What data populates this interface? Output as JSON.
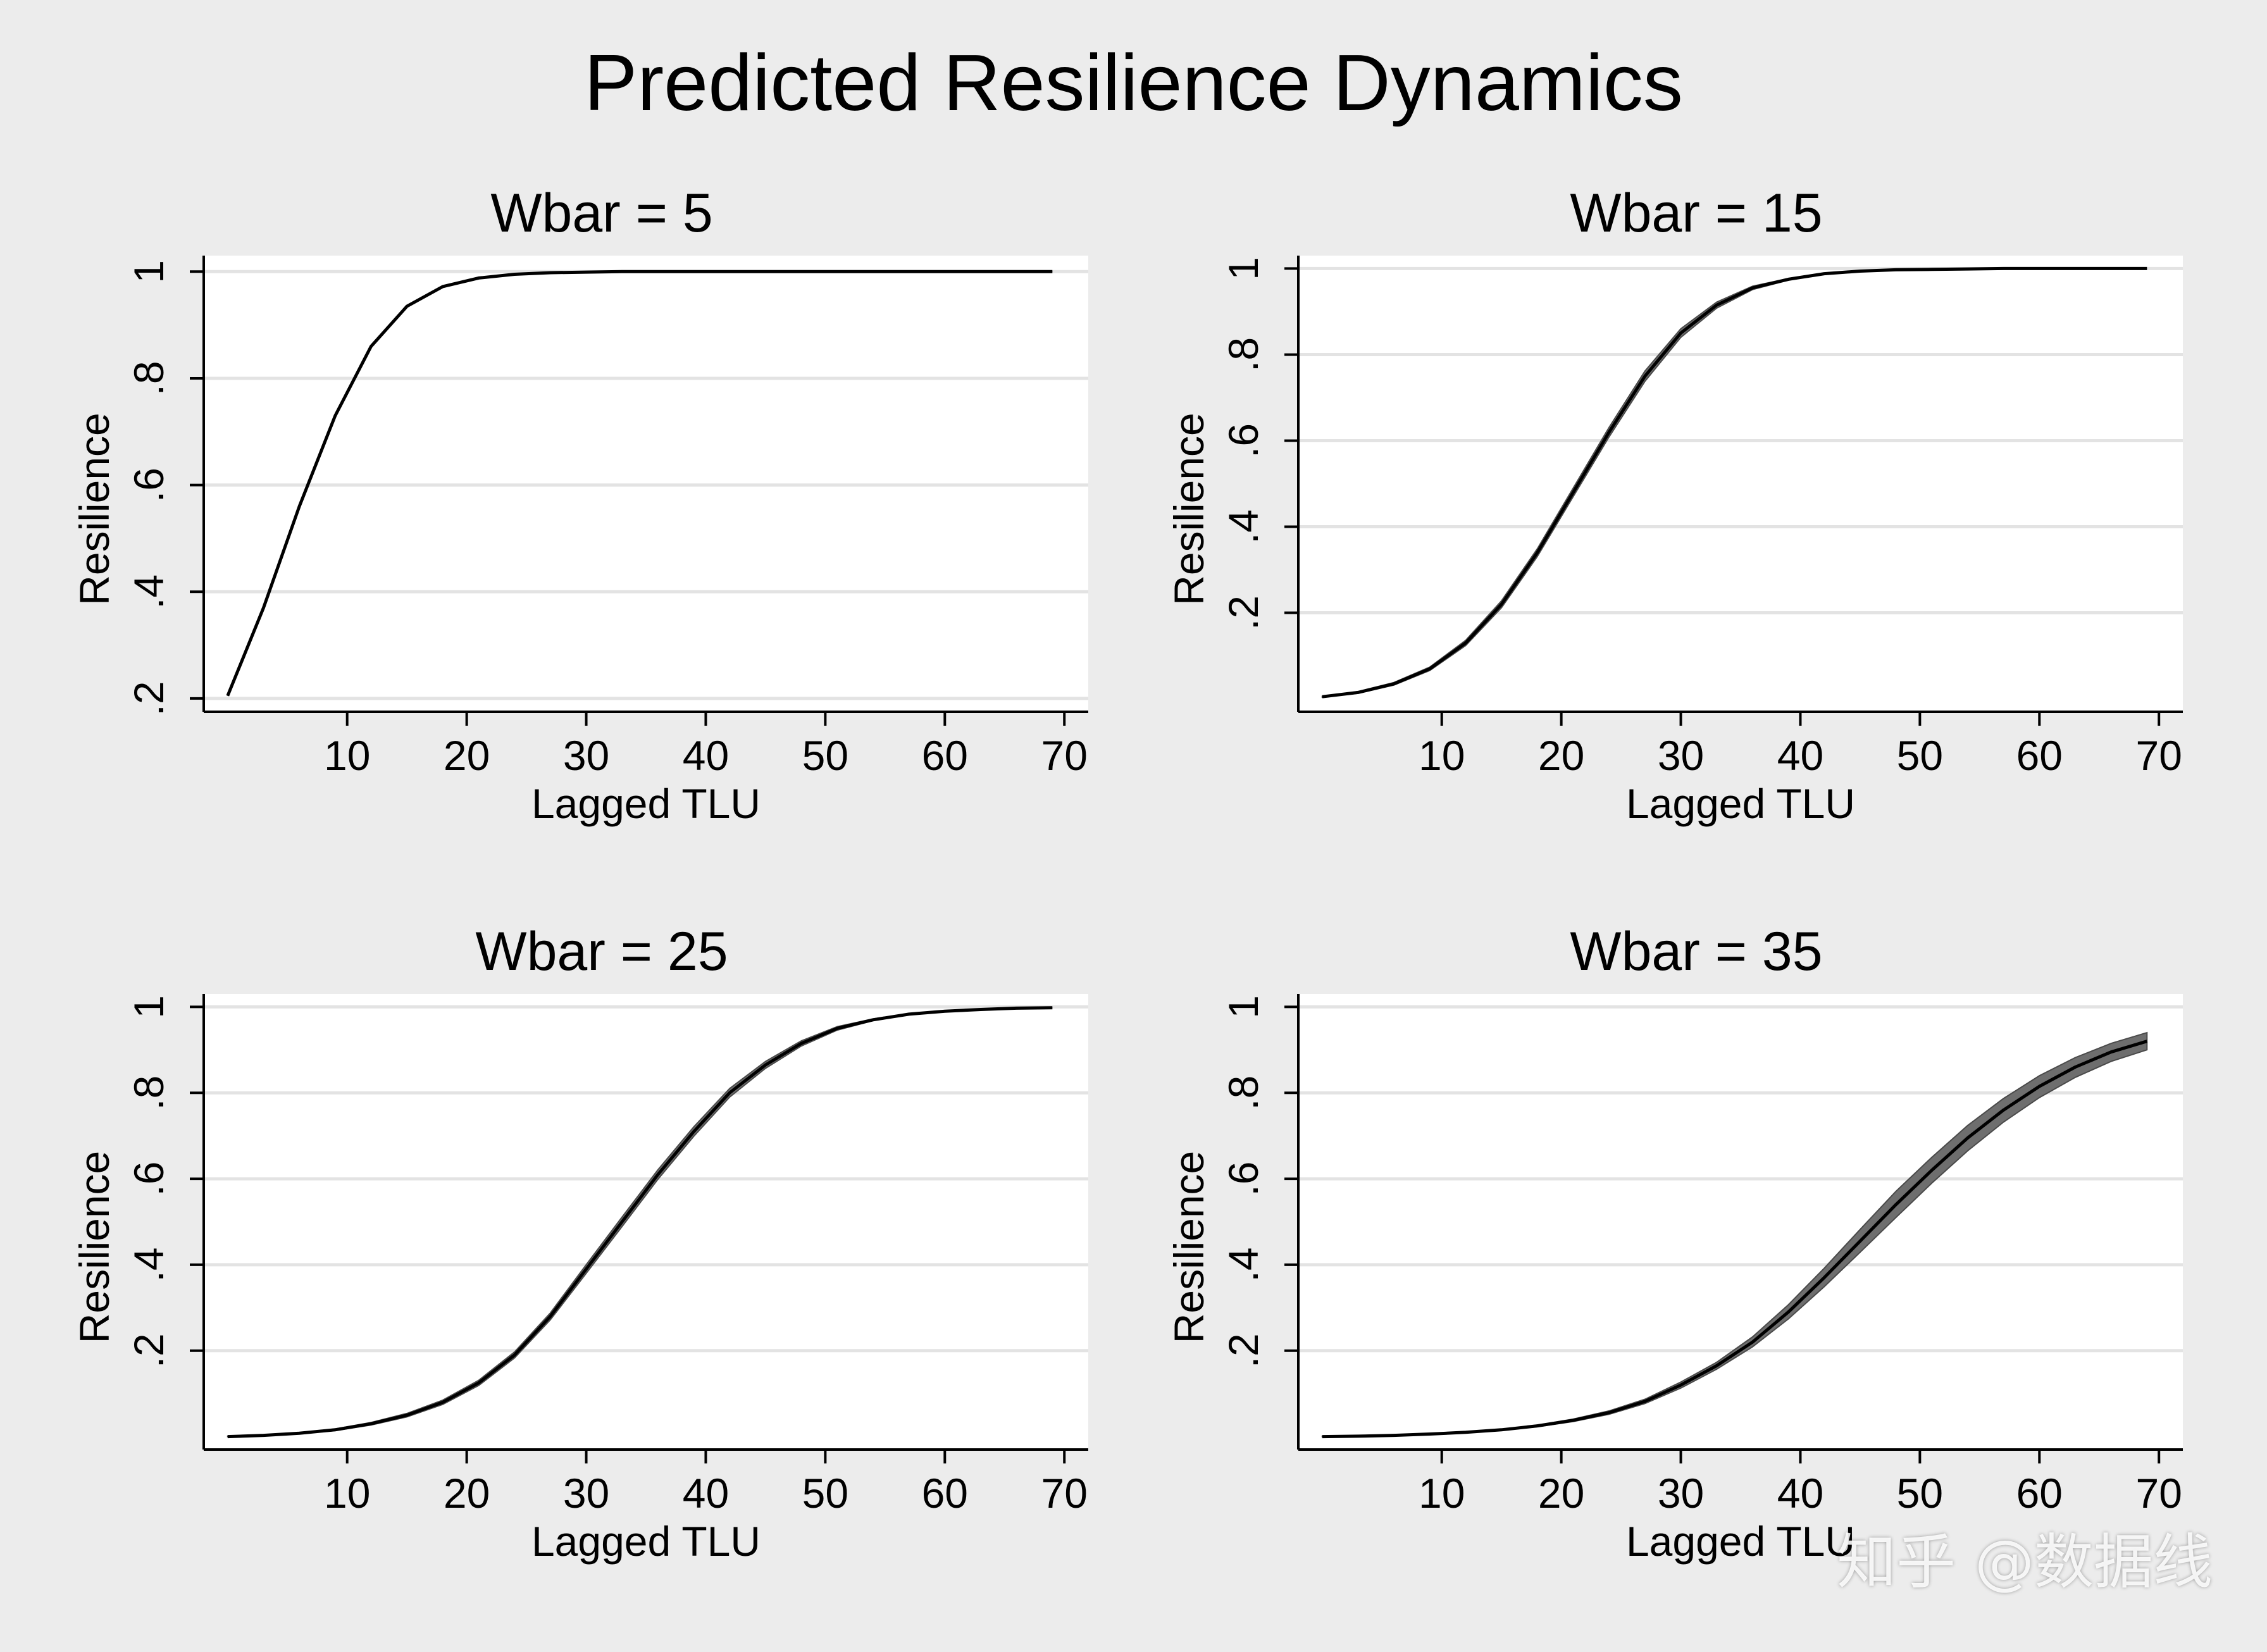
{
  "figure": {
    "title": "Predicted Resilience Dynamics",
    "watermark": "知乎 @数据线"
  },
  "chart_data": [
    {
      "type": "line",
      "title": "Wbar = 5",
      "xlabel": "Lagged TLU",
      "ylabel": "Resilience",
      "xlim": [
        -2,
        72
      ],
      "ylim": [
        0.175,
        1.03
      ],
      "xticks": [
        10,
        20,
        30,
        40,
        50,
        60,
        70
      ],
      "xtick_labels": [
        "10",
        "20",
        "30",
        "40",
        "50",
        "60",
        "70"
      ],
      "yticks": [
        0.2,
        0.4,
        0.6,
        0.8,
        1
      ],
      "ytick_labels": [
        ".2",
        ".4",
        ".6",
        ".8",
        "1"
      ],
      "grid": true,
      "x": [
        0,
        3,
        6,
        9,
        12,
        15,
        18,
        21,
        24,
        27,
        30,
        33,
        36,
        39,
        42,
        45,
        48,
        51,
        54,
        57,
        60,
        63,
        66,
        69
      ],
      "y": [
        0.205,
        0.37,
        0.56,
        0.73,
        0.86,
        0.935,
        0.972,
        0.988,
        0.995,
        0.998,
        0.999,
        1,
        1,
        1,
        1,
        1,
        1,
        1,
        1,
        1,
        1,
        1,
        1,
        1
      ],
      "lower": [
        0.205,
        0.37,
        0.56,
        0.73,
        0.86,
        0.935,
        0.972,
        0.988,
        0.995,
        0.998,
        0.999,
        1,
        1,
        1,
        1,
        1,
        1,
        1,
        1,
        1,
        1,
        1,
        1,
        1
      ],
      "upper": [
        0.205,
        0.37,
        0.56,
        0.73,
        0.86,
        0.935,
        0.972,
        0.988,
        0.995,
        0.998,
        0.999,
        1,
        1,
        1,
        1,
        1,
        1,
        1,
        1,
        1,
        1,
        1,
        1,
        1
      ]
    },
    {
      "type": "line",
      "title": "Wbar = 15",
      "xlabel": "Lagged TLU",
      "ylabel": "Resilience",
      "xlim": [
        -2,
        72
      ],
      "ylim": [
        -0.03,
        1.03
      ],
      "xticks": [
        10,
        20,
        30,
        40,
        50,
        60,
        70
      ],
      "xtick_labels": [
        "10",
        "20",
        "30",
        "40",
        "50",
        "60",
        "70"
      ],
      "yticks": [
        0.2,
        0.4,
        0.6,
        0.8,
        1
      ],
      "ytick_labels": [
        ".2",
        ".4",
        ".6",
        ".8",
        "1"
      ],
      "grid": true,
      "x": [
        0,
        3,
        6,
        9,
        12,
        15,
        18,
        21,
        24,
        27,
        30,
        33,
        36,
        39,
        42,
        45,
        48,
        51,
        54,
        57,
        60,
        63,
        66,
        69
      ],
      "y": [
        0.005,
        0.015,
        0.035,
        0.07,
        0.13,
        0.22,
        0.34,
        0.48,
        0.62,
        0.75,
        0.85,
        0.915,
        0.955,
        0.975,
        0.988,
        0.994,
        0.997,
        0.998,
        0.999,
        1,
        1,
        1,
        1,
        1
      ],
      "lower": [
        0.004,
        0.013,
        0.032,
        0.066,
        0.124,
        0.212,
        0.331,
        0.47,
        0.609,
        0.738,
        0.84,
        0.908,
        0.951,
        0.973,
        0.987,
        0.993,
        0.997,
        0.998,
        0.999,
        1,
        1,
        1,
        1,
        1
      ],
      "upper": [
        0.006,
        0.017,
        0.038,
        0.074,
        0.136,
        0.228,
        0.349,
        0.49,
        0.631,
        0.762,
        0.86,
        0.922,
        0.959,
        0.977,
        0.989,
        0.995,
        0.997,
        0.998,
        0.999,
        1,
        1,
        1,
        1,
        1
      ]
    },
    {
      "type": "line",
      "title": "Wbar = 25",
      "xlabel": "Lagged TLU",
      "ylabel": "Resilience",
      "xlim": [
        -2,
        72
      ],
      "ylim": [
        -0.03,
        1.03
      ],
      "xticks": [
        10,
        20,
        30,
        40,
        50,
        60,
        70
      ],
      "xtick_labels": [
        "10",
        "20",
        "30",
        "40",
        "50",
        "60",
        "70"
      ],
      "yticks": [
        0.2,
        0.4,
        0.6,
        0.8,
        1
      ],
      "ytick_labels": [
        ".2",
        ".4",
        ".6",
        ".8",
        "1"
      ],
      "grid": true,
      "x": [
        0,
        3,
        6,
        9,
        12,
        15,
        18,
        21,
        24,
        27,
        30,
        33,
        36,
        39,
        42,
        45,
        48,
        51,
        54,
        57,
        60,
        63,
        66,
        69
      ],
      "y": [
        0.0,
        0.003,
        0.008,
        0.016,
        0.03,
        0.05,
        0.08,
        0.125,
        0.19,
        0.28,
        0.39,
        0.5,
        0.61,
        0.71,
        0.8,
        0.865,
        0.915,
        0.95,
        0.97,
        0.983,
        0.99,
        0.994,
        0.997,
        0.998
      ],
      "lower": [
        0.0,
        0.002,
        0.007,
        0.014,
        0.027,
        0.046,
        0.075,
        0.119,
        0.183,
        0.272,
        0.38,
        0.489,
        0.599,
        0.699,
        0.79,
        0.857,
        0.909,
        0.946,
        0.968,
        0.982,
        0.99,
        0.994,
        0.997,
        0.998
      ],
      "upper": [
        0.001,
        0.004,
        0.009,
        0.018,
        0.033,
        0.054,
        0.085,
        0.131,
        0.197,
        0.288,
        0.4,
        0.511,
        0.621,
        0.721,
        0.81,
        0.873,
        0.921,
        0.954,
        0.972,
        0.984,
        0.99,
        0.994,
        0.997,
        0.998
      ]
    },
    {
      "type": "line",
      "title": "Wbar = 35",
      "xlabel": "Lagged TLU",
      "ylabel": "Resilience",
      "xlim": [
        -2,
        72
      ],
      "ylim": [
        -0.03,
        1.03
      ],
      "xticks": [
        10,
        20,
        30,
        40,
        50,
        60,
        70
      ],
      "xtick_labels": [
        "10",
        "20",
        "30",
        "40",
        "50",
        "60",
        "70"
      ],
      "yticks": [
        0.2,
        0.4,
        0.6,
        0.8,
        1
      ],
      "ytick_labels": [
        ".2",
        ".4",
        ".6",
        ".8",
        "1"
      ],
      "grid": true,
      "x": [
        0,
        3,
        6,
        9,
        12,
        15,
        18,
        21,
        24,
        27,
        30,
        33,
        36,
        39,
        42,
        45,
        48,
        51,
        54,
        57,
        60,
        63,
        66,
        69
      ],
      "y": [
        0.0,
        0.001,
        0.003,
        0.006,
        0.01,
        0.016,
        0.025,
        0.038,
        0.056,
        0.082,
        0.12,
        0.165,
        0.22,
        0.29,
        0.37,
        0.455,
        0.54,
        0.62,
        0.695,
        0.76,
        0.815,
        0.86,
        0.895,
        0.92
      ],
      "lower": [
        0.0,
        0.0,
        0.002,
        0.005,
        0.009,
        0.015,
        0.023,
        0.035,
        0.052,
        0.077,
        0.113,
        0.157,
        0.209,
        0.274,
        0.349,
        0.429,
        0.51,
        0.59,
        0.665,
        0.732,
        0.789,
        0.836,
        0.873,
        0.9
      ],
      "upper": [
        0.001,
        0.002,
        0.004,
        0.007,
        0.011,
        0.017,
        0.027,
        0.041,
        0.06,
        0.087,
        0.127,
        0.173,
        0.232,
        0.307,
        0.392,
        0.482,
        0.571,
        0.65,
        0.724,
        0.787,
        0.84,
        0.882,
        0.915,
        0.94
      ]
    }
  ]
}
